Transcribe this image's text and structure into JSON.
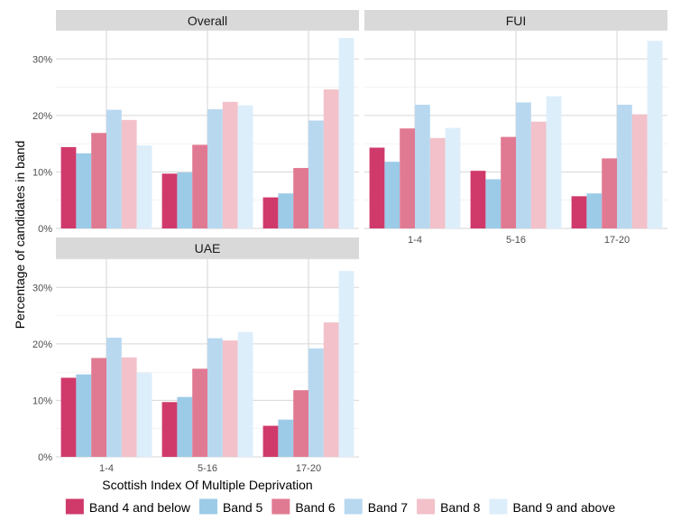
{
  "chart_data": {
    "type": "bar",
    "xlabel": "Scottish Index Of Multiple Deprivation",
    "ylabel": "Percentage of candidates in band",
    "ylim": [
      0,
      35
    ],
    "yticks": [
      "0%",
      "10%",
      "20%",
      "30%"
    ],
    "categories": [
      "1-4",
      "5-16",
      "17-20"
    ],
    "legend_position": "bottom",
    "series_names": [
      "Band 4 and below",
      "Band 5",
      "Band 6",
      "Band 7",
      "Band 8",
      "Band 9 and above"
    ],
    "colors": [
      "#d03a6b",
      "#9ccbe8",
      "#e07a92",
      "#b8d8f0",
      "#f2c1c9",
      "#ddeefb"
    ],
    "panels": [
      {
        "title": "Overall",
        "values": [
          [
            14.4,
            13.3,
            16.9,
            21.0,
            19.2,
            14.7
          ],
          [
            9.7,
            9.9,
            14.8,
            21.1,
            22.4,
            21.8
          ],
          [
            5.5,
            6.2,
            10.7,
            19.1,
            24.6,
            33.7
          ]
        ]
      },
      {
        "title": "FUI",
        "values": [
          [
            14.3,
            11.8,
            17.7,
            21.9,
            16.0,
            17.8
          ],
          [
            10.2,
            8.7,
            16.2,
            22.3,
            18.9,
            23.4
          ],
          [
            5.7,
            6.2,
            12.4,
            21.9,
            20.2,
            33.2
          ]
        ]
      },
      {
        "title": "UAE",
        "values": [
          [
            14.0,
            14.6,
            17.5,
            21.1,
            17.6,
            14.9
          ],
          [
            9.7,
            10.6,
            15.6,
            21.0,
            20.6,
            22.1
          ],
          [
            5.5,
            6.6,
            11.8,
            19.2,
            23.8,
            32.9
          ]
        ]
      }
    ]
  }
}
